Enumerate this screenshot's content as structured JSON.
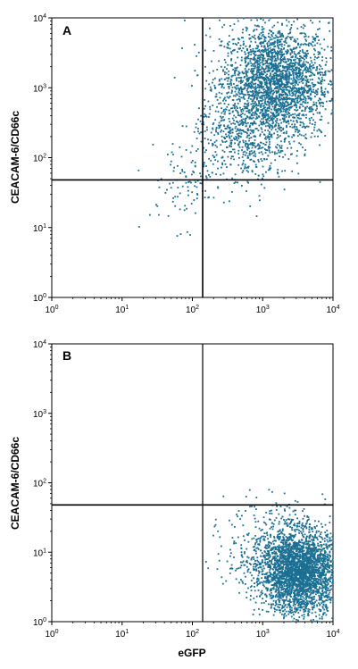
{
  "chart_data": [
    {
      "type": "scatter",
      "panel_label": "A",
      "xlabel": "",
      "ylabel": "CEACAM-6/CD66c",
      "xscale": "log",
      "yscale": "log",
      "xlim": [
        1,
        10000
      ],
      "ylim": [
        1,
        10000
      ],
      "x_ticks": [
        {
          "value": 1,
          "base": "10",
          "exp": "0"
        },
        {
          "value": 10,
          "base": "10",
          "exp": "1"
        },
        {
          "value": 100,
          "base": "10",
          "exp": "2"
        },
        {
          "value": 1000,
          "base": "10",
          "exp": "3"
        },
        {
          "value": 10000,
          "base": "10",
          "exp": "4"
        }
      ],
      "y_ticks": [
        {
          "value": 1,
          "base": "10",
          "exp": "0"
        },
        {
          "value": 10,
          "base": "10",
          "exp": "1"
        },
        {
          "value": 100,
          "base": "10",
          "exp": "2"
        },
        {
          "value": 1000,
          "base": "10",
          "exp": "3"
        },
        {
          "value": 10000,
          "base": "10",
          "exp": "4"
        }
      ],
      "quadrant_gates": {
        "x": 140,
        "y": 48
      },
      "point_color": "#1b6f93",
      "clusters": [
        {
          "x_center": 1500,
          "y_center": 1200,
          "x_spread_decades": 0.38,
          "y_spread_decades": 0.42,
          "count": 2600
        },
        {
          "x_center": 500,
          "y_center": 180,
          "x_spread_decades": 0.35,
          "y_spread_decades": 0.35,
          "count": 500
        },
        {
          "x_center": 70,
          "y_center": 40,
          "x_spread_decades": 0.25,
          "y_spread_decades": 0.3,
          "count": 80
        }
      ],
      "grid": false,
      "legend": "none"
    },
    {
      "type": "scatter",
      "panel_label": "B",
      "xlabel": "eGFP",
      "ylabel": "CEACAM-6/CD66c",
      "xscale": "log",
      "yscale": "log",
      "xlim": [
        1,
        10000
      ],
      "ylim": [
        1,
        10000
      ],
      "x_ticks": [
        {
          "value": 1,
          "base": "10",
          "exp": "0"
        },
        {
          "value": 10,
          "base": "10",
          "exp": "1"
        },
        {
          "value": 100,
          "base": "10",
          "exp": "2"
        },
        {
          "value": 1000,
          "base": "10",
          "exp": "3"
        },
        {
          "value": 10000,
          "base": "10",
          "exp": "4"
        }
      ],
      "y_ticks": [
        {
          "value": 1,
          "base": "10",
          "exp": "0"
        },
        {
          "value": 10,
          "base": "10",
          "exp": "1"
        },
        {
          "value": 100,
          "base": "10",
          "exp": "2"
        },
        {
          "value": 1000,
          "base": "10",
          "exp": "3"
        },
        {
          "value": 10000,
          "base": "10",
          "exp": "4"
        }
      ],
      "quadrant_gates": {
        "x": 140,
        "y": 48
      },
      "point_color": "#1b6f93",
      "clusters": [
        {
          "x_center": 3500,
          "y_center": 5,
          "x_spread_decades": 0.28,
          "y_spread_decades": 0.3,
          "count": 2800
        },
        {
          "x_center": 1500,
          "y_center": 10,
          "x_spread_decades": 0.35,
          "y_spread_decades": 0.35,
          "count": 500
        }
      ],
      "grid": false,
      "legend": "none"
    }
  ]
}
